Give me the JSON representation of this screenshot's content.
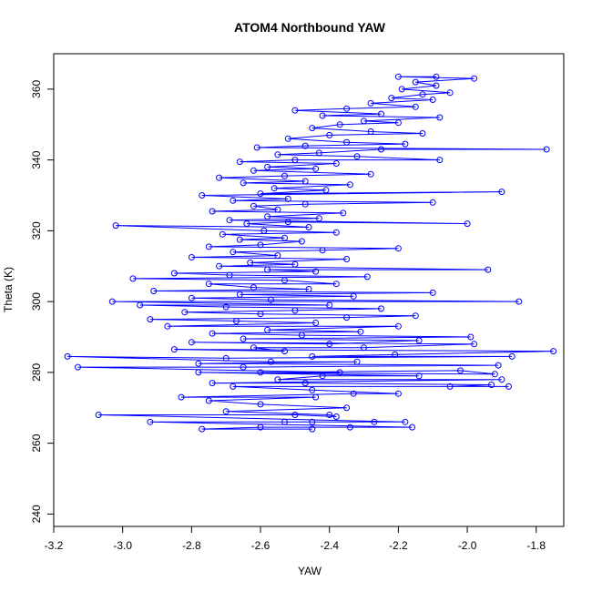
{
  "chart_data": {
    "type": "scatter",
    "title": "ATOM4 Northbound YAW",
    "xlabel": "YAW",
    "ylabel": "Theta (K)",
    "xlim": [
      -3.2,
      -1.72
    ],
    "ylim": [
      236.5,
      370
    ],
    "x_ticks": [
      -3.2,
      -3.0,
      -2.8,
      -2.6,
      -2.4,
      -2.2,
      -2.0,
      -1.8
    ],
    "x_tick_labels": [
      "-3.2",
      "-3.0",
      "-2.8",
      "-2.6",
      "-2.4",
      "-2.2",
      "-2.0",
      "-1.8"
    ],
    "y_ticks": [
      240,
      260,
      280,
      300,
      320,
      340,
      360
    ],
    "y_tick_labels": [
      "240",
      "260",
      "280",
      "300",
      "320",
      "340",
      "360"
    ],
    "grid": false,
    "legend": "none",
    "series": [
      {
        "color": "#0000ff",
        "style": "line-with-open-circles",
        "points": [
          [
            -2.45,
            264
          ],
          [
            -2.77,
            264
          ],
          [
            -2.6,
            264.5
          ],
          [
            -2.34,
            264.5
          ],
          [
            -2.16,
            264.5
          ],
          [
            -2.92,
            266
          ],
          [
            -2.45,
            266
          ],
          [
            -2.53,
            266
          ],
          [
            -2.27,
            266
          ],
          [
            -2.18,
            266
          ],
          [
            -3.07,
            268
          ],
          [
            -2.5,
            268
          ],
          [
            -2.38,
            267.5
          ],
          [
            -2.4,
            268
          ],
          [
            -2.7,
            269
          ],
          [
            -2.35,
            270
          ],
          [
            -2.6,
            271
          ],
          [
            -2.75,
            272
          ],
          [
            -2.44,
            273
          ],
          [
            -2.83,
            273
          ],
          [
            -2.33,
            274
          ],
          [
            -2.2,
            274
          ],
          [
            -2.45,
            275
          ],
          [
            -2.68,
            276
          ],
          [
            -1.88,
            276
          ],
          [
            -2.05,
            276
          ],
          [
            -1.93,
            276.5
          ],
          [
            -2.47,
            277
          ],
          [
            -2.74,
            277
          ],
          [
            -1.9,
            278
          ],
          [
            -2.55,
            278
          ],
          [
            -2.42,
            279
          ],
          [
            -2.14,
            279
          ],
          [
            -2.78,
            280
          ],
          [
            -1.92,
            279.5
          ],
          [
            -2.02,
            280.5
          ],
          [
            -2.6,
            280
          ],
          [
            -2.37,
            280
          ],
          [
            -3.13,
            281.5
          ],
          [
            -2.65,
            281.5
          ],
          [
            -1.91,
            282
          ],
          [
            -2.78,
            282.5
          ],
          [
            -2.32,
            283
          ],
          [
            -2.57,
            283
          ],
          [
            -3.16,
            284.5
          ],
          [
            -2.7,
            284
          ],
          [
            -1.87,
            284.5
          ],
          [
            -2.45,
            284.5
          ],
          [
            -2.21,
            285
          ],
          [
            -1.75,
            286
          ],
          [
            -2.85,
            286.5
          ],
          [
            -2.53,
            286
          ],
          [
            -2.62,
            287
          ],
          [
            -2.3,
            287
          ],
          [
            -1.98,
            288
          ],
          [
            -2.8,
            288.5
          ],
          [
            -2.4,
            288
          ],
          [
            -2.14,
            289
          ],
          [
            -2.65,
            289.5
          ],
          [
            -1.99,
            290
          ],
          [
            -2.48,
            290.5
          ],
          [
            -2.74,
            291
          ],
          [
            -2.31,
            291.5
          ],
          [
            -2.58,
            292
          ],
          [
            -2.2,
            293
          ],
          [
            -2.87,
            293
          ],
          [
            -2.44,
            294
          ],
          [
            -2.67,
            294.5
          ],
          [
            -2.92,
            295
          ],
          [
            -2.35,
            295.5
          ],
          [
            -2.15,
            296
          ],
          [
            -2.6,
            296.5
          ],
          [
            -2.82,
            297
          ],
          [
            -2.5,
            297.5
          ],
          [
            -2.25,
            298
          ],
          [
            -2.7,
            298.5
          ],
          [
            -2.95,
            299
          ],
          [
            -2.4,
            299
          ],
          [
            -3.03,
            300
          ],
          [
            -1.85,
            300
          ],
          [
            -2.57,
            300.5
          ],
          [
            -2.8,
            301
          ],
          [
            -2.33,
            301.5
          ],
          [
            -2.66,
            302
          ],
          [
            -2.1,
            302.5
          ],
          [
            -2.91,
            303
          ],
          [
            -2.46,
            303.5
          ],
          [
            -2.62,
            304
          ],
          [
            -2.75,
            305
          ],
          [
            -2.38,
            305
          ],
          [
            -2.53,
            306
          ],
          [
            -2.97,
            306.5
          ],
          [
            -2.29,
            307
          ],
          [
            -2.69,
            307.5
          ],
          [
            -2.85,
            308
          ],
          [
            -2.44,
            308.5
          ],
          [
            -2.58,
            309
          ],
          [
            -1.94,
            309
          ],
          [
            -2.72,
            310
          ],
          [
            -2.5,
            310.5
          ],
          [
            -2.63,
            311
          ],
          [
            -2.35,
            312
          ],
          [
            -2.8,
            312.5
          ],
          [
            -2.55,
            313
          ],
          [
            -2.68,
            314
          ],
          [
            -2.42,
            314.5
          ],
          [
            -2.2,
            315
          ],
          [
            -2.75,
            315.5
          ],
          [
            -2.6,
            316
          ],
          [
            -2.48,
            317
          ],
          [
            -2.66,
            317.5
          ],
          [
            -2.53,
            318
          ],
          [
            -2.71,
            319
          ],
          [
            -2.38,
            319.5
          ],
          [
            -2.59,
            320
          ],
          [
            -3.02,
            321.5
          ],
          [
            -2.46,
            321
          ],
          [
            -2.64,
            322
          ],
          [
            -2.52,
            322.5
          ],
          [
            -2.0,
            322
          ],
          [
            -2.69,
            323
          ],
          [
            -2.43,
            323.5
          ],
          [
            -2.58,
            324
          ],
          [
            -2.36,
            325
          ],
          [
            -2.74,
            325.5
          ],
          [
            -2.55,
            326
          ],
          [
            -2.62,
            327
          ],
          [
            -2.47,
            327.5
          ],
          [
            -2.1,
            328
          ],
          [
            -2.68,
            328.5
          ],
          [
            -2.52,
            329
          ],
          [
            -2.77,
            330
          ],
          [
            -1.9,
            331
          ],
          [
            -2.6,
            330.5
          ],
          [
            -2.41,
            331.5
          ],
          [
            -2.56,
            332
          ],
          [
            -2.34,
            333
          ],
          [
            -2.65,
            333.5
          ],
          [
            -2.47,
            334
          ],
          [
            -2.72,
            335
          ],
          [
            -2.53,
            335.5
          ],
          [
            -2.28,
            336
          ],
          [
            -2.62,
            337
          ],
          [
            -2.44,
            337.5
          ],
          [
            -2.58,
            338
          ],
          [
            -2.38,
            339
          ],
          [
            -2.66,
            339.5
          ],
          [
            -2.5,
            340
          ],
          [
            -2.08,
            340
          ],
          [
            -2.32,
            341
          ],
          [
            -2.55,
            341.5
          ],
          [
            -2.43,
            342
          ],
          [
            -2.25,
            343
          ],
          [
            -1.77,
            343
          ],
          [
            -2.61,
            343.5
          ],
          [
            -2.47,
            344
          ],
          [
            -2.18,
            344.5
          ],
          [
            -2.35,
            345
          ],
          [
            -2.52,
            346
          ],
          [
            -2.4,
            347
          ],
          [
            -2.13,
            347.5
          ],
          [
            -2.28,
            348
          ],
          [
            -2.45,
            349
          ],
          [
            -2.37,
            350
          ],
          [
            -2.2,
            350.5
          ],
          [
            -2.3,
            351
          ],
          [
            -2.08,
            352
          ],
          [
            -2.42,
            352.5
          ],
          [
            -2.25,
            353
          ],
          [
            -2.5,
            354
          ],
          [
            -2.35,
            354.5
          ],
          [
            -2.15,
            355
          ],
          [
            -2.28,
            356
          ],
          [
            -2.1,
            357
          ],
          [
            -2.22,
            357.5
          ],
          [
            -2.13,
            358.5
          ],
          [
            -2.05,
            359
          ],
          [
            -2.19,
            360
          ],
          [
            -2.09,
            361
          ],
          [
            -2.15,
            362
          ],
          [
            -1.98,
            363
          ],
          [
            -2.2,
            363.5
          ],
          [
            -2.09,
            363.5
          ]
        ]
      }
    ]
  }
}
